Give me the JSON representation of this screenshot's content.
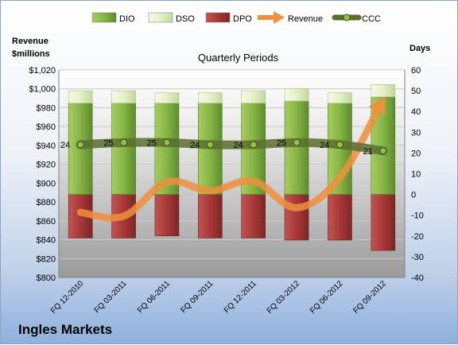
{
  "chart_data": {
    "type": "bar",
    "company": "Ingles Markets",
    "title": "Quarterly Periods",
    "left_axis_title": [
      "Revenue",
      "$millions"
    ],
    "right_axis_title": "Days",
    "categories": [
      "FQ 12-2010",
      "FQ 03-2011",
      "FQ 06-2011",
      "FQ 09-2011",
      "FQ 12-2011",
      "FQ 03-2012",
      "FQ 06-2012",
      "FQ 09-2012"
    ],
    "series": [
      {
        "name": "DIO",
        "kind": "bar",
        "axis": "days",
        "values": [
          44,
          44,
          44,
          44,
          44,
          45,
          44,
          47
        ],
        "color": "#7aaa3c"
      },
      {
        "name": "DSO",
        "kind": "bar",
        "axis": "days",
        "values": [
          6,
          6,
          5,
          5,
          6,
          6,
          5,
          6
        ],
        "color": "#e4f0c6"
      },
      {
        "name": "DPO",
        "kind": "bar",
        "axis": "days",
        "values": [
          -21,
          -21,
          -20,
          -21,
          -21,
          -22,
          -22,
          -27
        ],
        "color": "#b23d3d"
      },
      {
        "name": "Revenue",
        "kind": "line",
        "axis": "revenue",
        "values": [
          869,
          865,
          901,
          892,
          902,
          874,
          906,
          988
        ],
        "color": "#f08f3c"
      },
      {
        "name": "CCC",
        "kind": "line",
        "axis": "days",
        "values": [
          24,
          25,
          25,
          24,
          24,
          25,
          24,
          21
        ],
        "color": "#5b6e2e"
      }
    ],
    "ccc_labels": [
      "24",
      "25",
      "25",
      "24",
      "24",
      "25",
      "24",
      "21"
    ],
    "left_axis": {
      "min": 800,
      "max": 1020,
      "step": 20,
      "prefix": "$",
      "thousands_sep": ","
    },
    "right_axis": {
      "min": -40,
      "max": 60,
      "step": 10
    },
    "legend": {
      "position": "top",
      "entries": [
        "DIO",
        "DSO",
        "DPO",
        "Revenue",
        "CCC"
      ]
    },
    "grid": true
  }
}
